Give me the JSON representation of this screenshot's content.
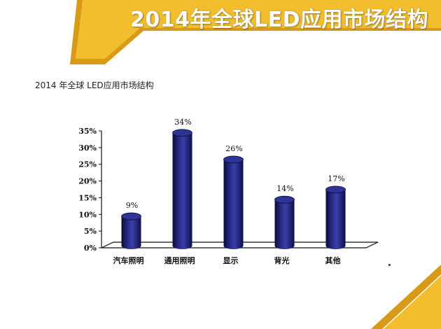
{
  "banner": {
    "title": "2014年全球LED应用市场结构"
  },
  "chart_heading": "2014 年全球 LED应用市场结构",
  "colors": {
    "banner_gold": "#f2be2e",
    "banner_dark": "#d99a18",
    "bar_fill": "#1c1f70",
    "bar_highlight": "#3a3fa8",
    "bar_shadow": "#0b0c3a"
  },
  "chart_data": {
    "type": "bar",
    "title": "2014 年全球 LED应用市场结构",
    "categories": [
      "汽车照明",
      "通用照明",
      "显示",
      "背光",
      "其他"
    ],
    "values": [
      9,
      34,
      26,
      14,
      17
    ],
    "value_labels": [
      "9%",
      "34%",
      "26%",
      "14%",
      "17%"
    ],
    "y_ticks": [
      "0%",
      "5%",
      "10%",
      "15%",
      "20%",
      "25%",
      "30%",
      "35%"
    ],
    "ylim": [
      0,
      35
    ],
    "xlabel": "",
    "ylabel": "",
    "grid": false,
    "style": "3d-cylinder"
  }
}
